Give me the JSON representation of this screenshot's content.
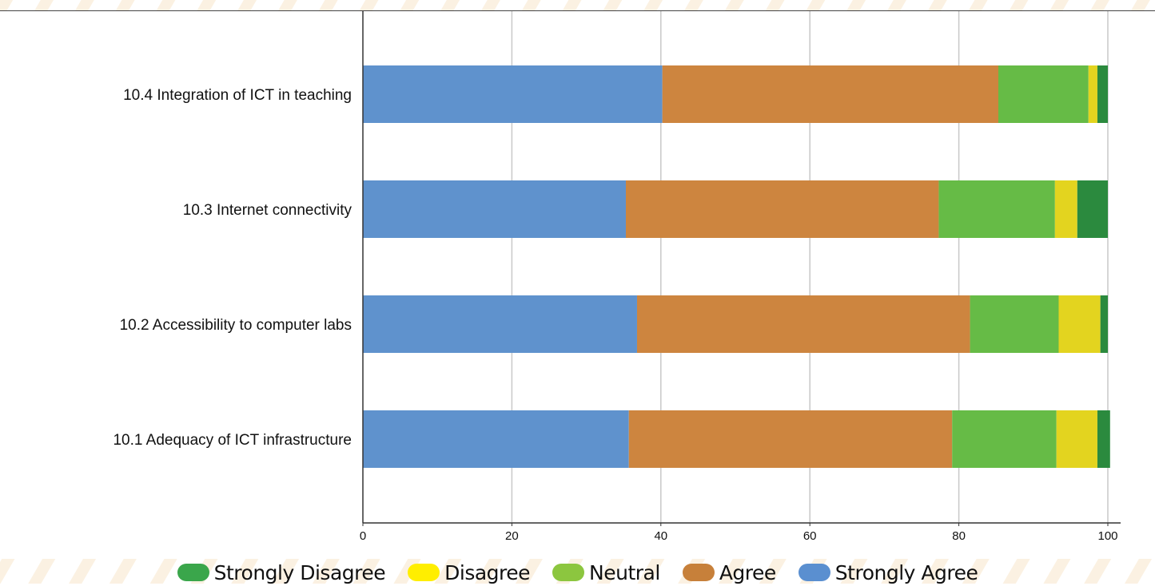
{
  "chart_data": {
    "type": "bar",
    "orientation": "horizontal",
    "stacked": true,
    "categories": [
      "10.4 Integration of ICT in teaching",
      "10.3 Internet connectivity",
      "10.2 Accessibility to computer labs",
      "10.1 Adequacy of ICT infrastructure"
    ],
    "series": [
      {
        "name": "Strongly Agree",
        "color": "#5f92cd",
        "values": [
          40.2,
          35.3,
          36.8,
          35.7
        ]
      },
      {
        "name": "Agree",
        "color": "#cd853f",
        "values": [
          45.1,
          42.0,
          44.7,
          43.4
        ]
      },
      {
        "name": "Neutral",
        "color": "#66bb46",
        "values": [
          12.1,
          15.6,
          11.9,
          14.0
        ]
      },
      {
        "name": "Disagree",
        "color": "#e3d41f",
        "values": [
          1.2,
          3.0,
          5.6,
          5.5
        ]
      },
      {
        "name": "Strongly Disagree",
        "color": "#2b8a3e",
        "values": [
          1.4,
          4.1,
          1.0,
          1.7
        ]
      }
    ],
    "xlim": [
      0,
      100
    ],
    "xticks": [
      "0",
      "20",
      "40",
      "60",
      "80",
      "100"
    ],
    "grid": "vertical",
    "legend": {
      "position": "bottom",
      "entries": [
        {
          "name": "Strongly Disagree",
          "color": "#3aa64b"
        },
        {
          "name": "Disagree",
          "color": "#ffee00"
        },
        {
          "name": "Neutral",
          "color": "#8cc63f"
        },
        {
          "name": "Agree",
          "color": "#c7803a"
        },
        {
          "name": "Strongly Agree",
          "color": "#5a8fd0"
        }
      ]
    }
  }
}
